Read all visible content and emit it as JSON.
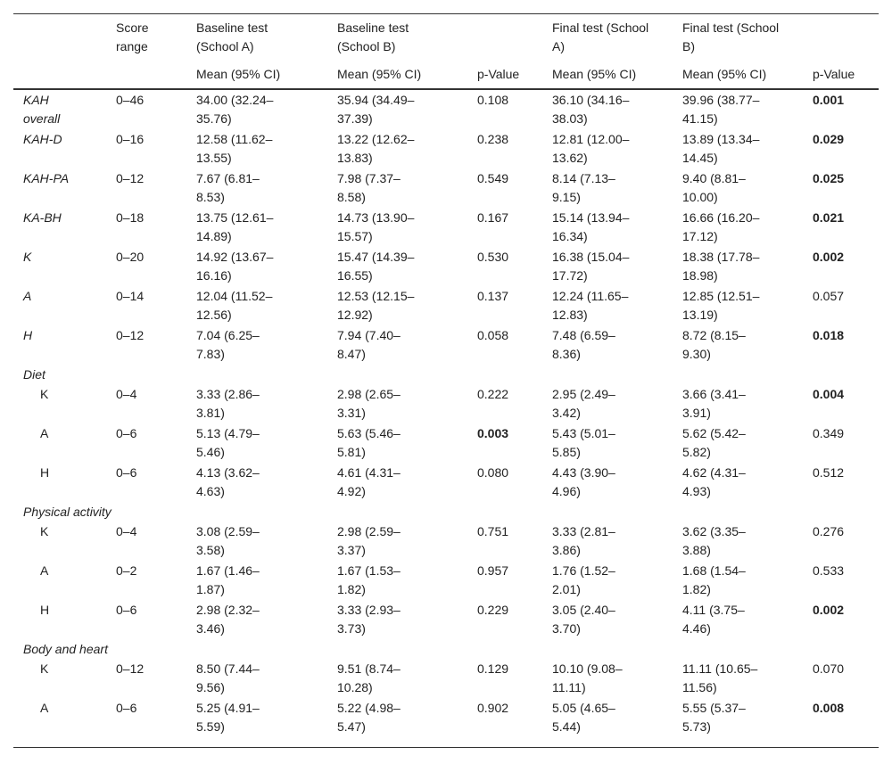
{
  "table": {
    "header": {
      "groups": [
        "Score range",
        "Baseline test (School A)",
        "Baseline test (School B)",
        "Final test (School A)",
        "Final test (School B)"
      ],
      "subheads": [
        "Mean (95% CI)",
        "Mean (95% CI)",
        "p-Value",
        "Mean (95% CI)",
        "Mean (95% CI)",
        "p-Value"
      ]
    },
    "rows": [
      {
        "label": "KAH overall",
        "range": "0–46",
        "cells": [
          "34.00 (32.24–35.76)",
          "35.94 (34.49–37.39)",
          "0.108",
          "36.10 (34.16–38.03)",
          "39.96 (38.77–41.15)",
          "0.001"
        ],
        "bold": [
          5
        ]
      },
      {
        "label": "KAH-D",
        "range": "0–16",
        "cells": [
          "12.58 (11.62–13.55)",
          "13.22 (12.62–13.83)",
          "0.238",
          "12.81 (12.00–13.62)",
          "13.89 (13.34–14.45)",
          "0.029"
        ],
        "bold": [
          5
        ]
      },
      {
        "label": "KAH-PA",
        "range": "0–12",
        "cells": [
          "7.67 (6.81–8.53)",
          "7.98 (7.37–8.58)",
          "0.549",
          "8.14 (7.13–9.15)",
          "9.40 (8.81–10.00)",
          "0.025"
        ],
        "bold": [
          5
        ]
      },
      {
        "label": "KA-BH",
        "range": "0–18",
        "cells": [
          "13.75 (12.61–14.89)",
          "14.73 (13.90–15.57)",
          "0.167",
          "15.14 (13.94–16.34)",
          "16.66 (16.20–17.12)",
          "0.021"
        ],
        "bold": [
          5
        ]
      },
      {
        "label": "K",
        "range": "0–20",
        "cells": [
          "14.92 (13.67–16.16)",
          "15.47 (14.39–16.55)",
          "0.530",
          "16.38 (15.04–17.72)",
          "18.38 (17.78–18.98)",
          "0.002"
        ],
        "bold": [
          5
        ]
      },
      {
        "label": "A",
        "range": "0–14",
        "cells": [
          "12.04 (11.52–12.56)",
          "12.53 (12.15–12.92)",
          "0.137",
          "12.24 (11.65–12.83)",
          "12.85 (12.51–13.19)",
          "0.057"
        ]
      },
      {
        "label": "H",
        "range": "0–12",
        "cells": [
          "7.04 (6.25–7.83)",
          "7.94 (7.40–8.47)",
          "0.058",
          "7.48 (6.59–8.36)",
          "8.72 (8.15–9.30)",
          "0.018"
        ],
        "bold": [
          5
        ]
      }
    ],
    "sections": [
      {
        "title": "Diet",
        "rows": [
          {
            "label": "K",
            "range": "0–4",
            "cells": [
              "3.33 (2.86–3.81)",
              "2.98 (2.65–3.31)",
              "0.222",
              "2.95 (2.49–3.42)",
              "3.66 (3.41–3.91)",
              "0.004"
            ],
            "bold": [
              5
            ]
          },
          {
            "label": "A",
            "range": "0–6",
            "cells": [
              "5.13 (4.79–5.46)",
              "5.63 (5.46–5.81)",
              "0.003",
              "5.43 (5.01–5.85)",
              "5.62 (5.42–5.82)",
              "0.349"
            ],
            "bold": [
              2
            ]
          },
          {
            "label": "H",
            "range": "0–6",
            "cells": [
              "4.13 (3.62–4.63)",
              "4.61 (4.31–4.92)",
              "0.080",
              "4.43 (3.90–4.96)",
              "4.62 (4.31–4.93)",
              "0.512"
            ]
          }
        ]
      },
      {
        "title": "Physical activity",
        "rows": [
          {
            "label": "K",
            "range": "0–4",
            "cells": [
              "3.08 (2.59–3.58)",
              "2.98 (2.59–3.37)",
              "0.751",
              "3.33 (2.81–3.86)",
              "3.62 (3.35–3.88)",
              "0.276"
            ]
          },
          {
            "label": "A",
            "range": "0–2",
            "cells": [
              "1.67 (1.46–1.87)",
              "1.67 (1.53–1.82)",
              "0.957",
              "1.76 (1.52–2.01)",
              "1.68 (1.54–1.82)",
              "0.533"
            ]
          },
          {
            "label": "H",
            "range": "0–6",
            "cells": [
              "2.98 (2.32–3.46)",
              "3.33 (2.93–3.73)",
              "0.229",
              "3.05 (2.40–3.70)",
              "4.11 (3.75–4.46)",
              "0.002"
            ],
            "bold": [
              5
            ]
          }
        ]
      },
      {
        "title": "Body and heart",
        "rows": [
          {
            "label": "K",
            "range": "0–12",
            "cells": [
              "8.50 (7.44–9.56)",
              "9.51 (8.74–10.28)",
              "0.129",
              "10.10 (9.08–11.11)",
              "11.11 (10.65–11.56)",
              "0.070"
            ]
          },
          {
            "label": "A",
            "range": "0–6",
            "cells": [
              "5.25 (4.91–5.59)",
              "5.22 (4.98–5.47)",
              "0.902",
              "5.05 (4.65–5.44)",
              "5.55 (5.37–5.73)",
              "0.008"
            ],
            "bold": [
              5
            ]
          }
        ]
      }
    ]
  }
}
